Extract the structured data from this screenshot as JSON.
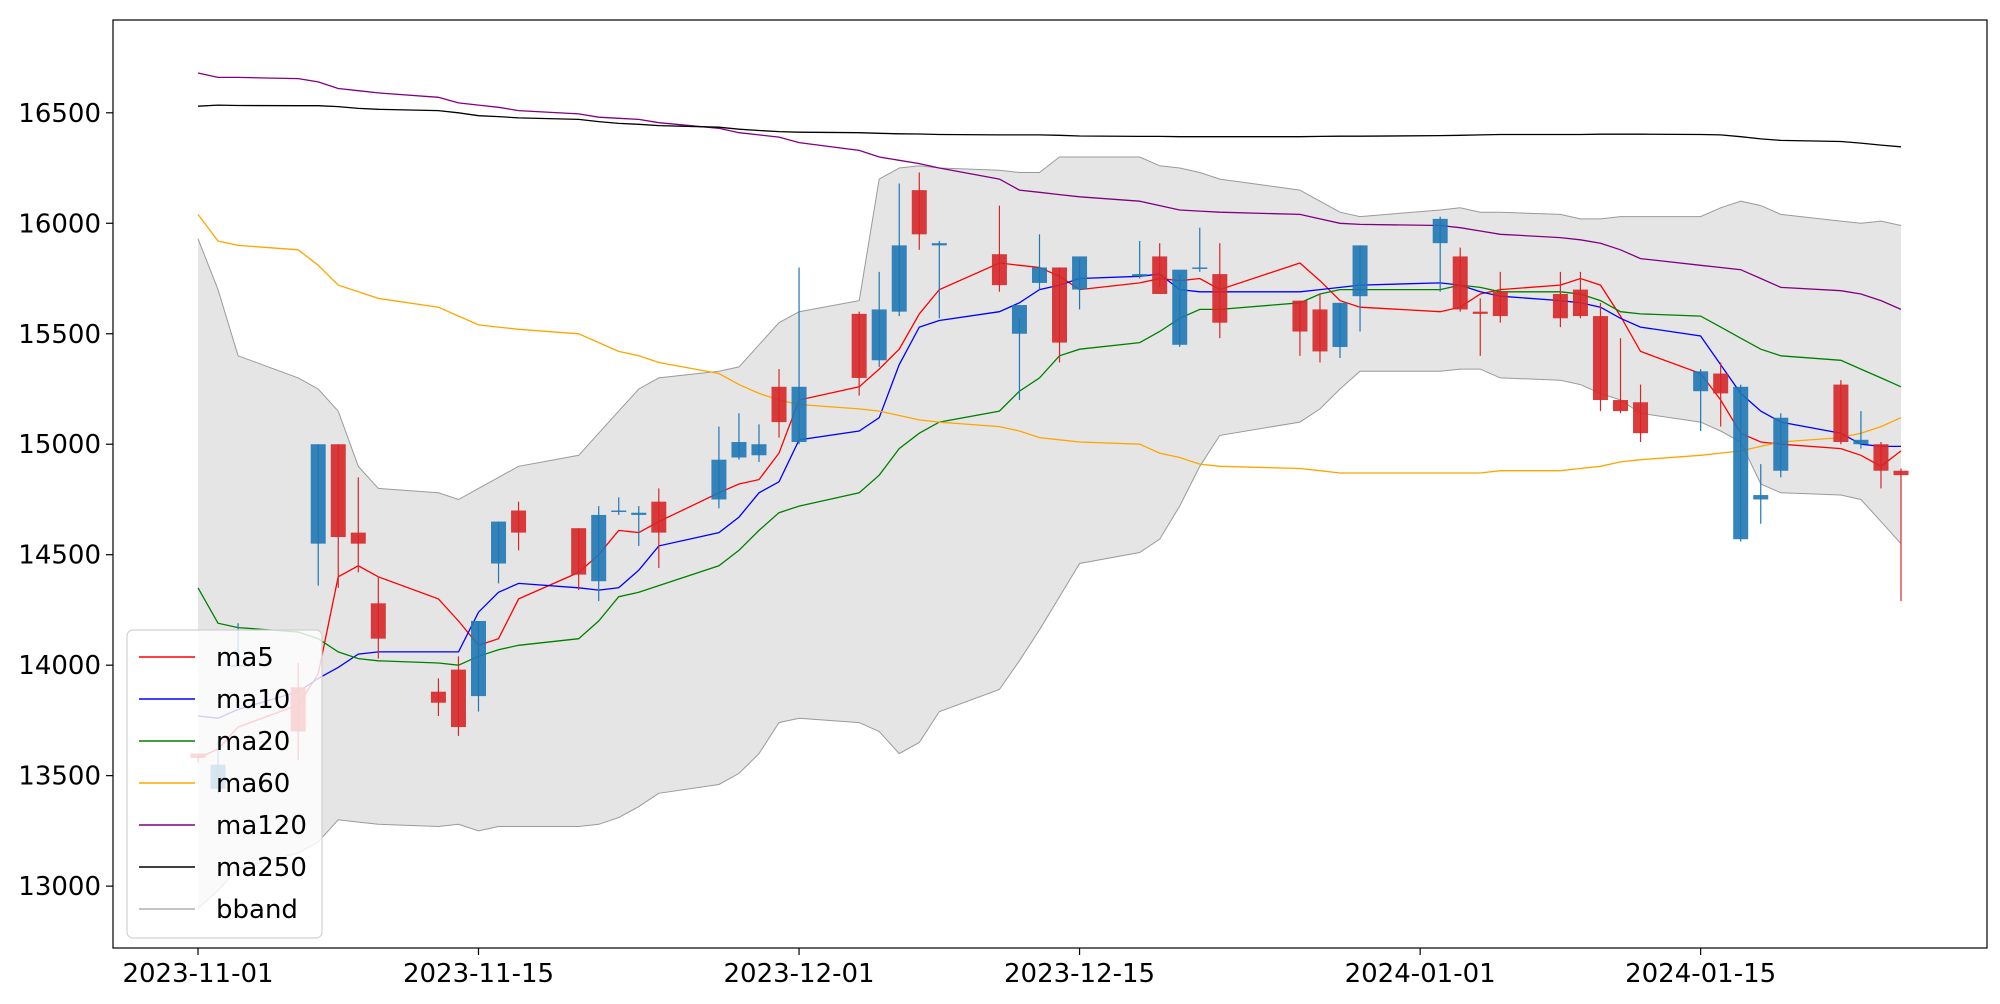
{
  "chart_data": {
    "type": "candlestick",
    "title": "",
    "xlabel": "",
    "ylabel": "",
    "dates": [
      "2023-11-01",
      "2023-11-02",
      "2023-11-03",
      "2023-11-06",
      "2023-11-07",
      "2023-11-08",
      "2023-11-09",
      "2023-11-10",
      "2023-11-13",
      "2023-11-14",
      "2023-11-15",
      "2023-11-16",
      "2023-11-17",
      "2023-11-20",
      "2023-11-21",
      "2023-11-22",
      "2023-11-23",
      "2023-11-24",
      "2023-11-27",
      "2023-11-28",
      "2023-11-29",
      "2023-11-30",
      "2023-12-01",
      "2023-12-04",
      "2023-12-05",
      "2023-12-06",
      "2023-12-07",
      "2023-12-08",
      "2023-12-11",
      "2023-12-12",
      "2023-12-13",
      "2023-12-14",
      "2023-12-15",
      "2023-12-18",
      "2023-12-19",
      "2023-12-20",
      "2023-12-21",
      "2023-12-22",
      "2023-12-26",
      "2023-12-27",
      "2023-12-28",
      "2023-12-29",
      "2024-01-02",
      "2024-01-03",
      "2024-01-04",
      "2024-01-05",
      "2024-01-08",
      "2024-01-09",
      "2024-01-10",
      "2024-01-11",
      "2024-01-12",
      "2024-01-15",
      "2024-01-16",
      "2024-01-17",
      "2024-01-18",
      "2024-01-19",
      "2024-01-22",
      "2024-01-23",
      "2024-01-24",
      "2024-01-25"
    ],
    "x_ticks": [
      "2023-11-01",
      "2023-11-15",
      "2023-12-01",
      "2023-12-15",
      "2024-01-01",
      "2024-01-15"
    ],
    "y_ticks": [
      13000,
      13500,
      14000,
      14500,
      15000,
      15500,
      16000,
      16500
    ],
    "ylim": [
      12720,
      16920
    ],
    "grid": false,
    "legend_position": "lower-left",
    "candles": {
      "open": [
        13600,
        13440,
        14000,
        13900,
        14550,
        15000,
        14600,
        14280,
        13880,
        13980,
        13860,
        14460,
        14700,
        14620,
        14380,
        14700,
        14680,
        14740,
        14750,
        14940,
        14950,
        15260,
        15010,
        15590,
        15380,
        15600,
        16150,
        15900,
        15860,
        15500,
        15730,
        15800,
        15700,
        15760,
        15850,
        15450,
        15800,
        15770,
        15650,
        15610,
        15440,
        15670,
        15910,
        15850,
        15600,
        15690,
        15680,
        15700,
        15580,
        15200,
        15190,
        15240,
        15320,
        14570,
        14750,
        14880,
        15270,
        15000,
        15000,
        14880
      ],
      "close": [
        13580,
        13550,
        14000,
        13700,
        15000,
        14580,
        14550,
        14120,
        13830,
        13720,
        14200,
        14650,
        14600,
        14410,
        14680,
        14700,
        14690,
        14600,
        14930,
        15010,
        15000,
        15100,
        15260,
        15300,
        15610,
        15900,
        15950,
        15910,
        15720,
        15630,
        15800,
        15460,
        15850,
        15770,
        15680,
        15790,
        15800,
        15550,
        15510,
        15420,
        15640,
        15900,
        16020,
        15610,
        15590,
        15580,
        15570,
        15580,
        15200,
        15150,
        15050,
        15330,
        15230,
        15260,
        14770,
        15120,
        15010,
        15020,
        14880,
        14860
      ],
      "high": [
        13600,
        13660,
        14190,
        14010,
        15000,
        15000,
        14850,
        14400,
        13940,
        14040,
        14200,
        14650,
        14740,
        14620,
        14720,
        14760,
        14720,
        14800,
        15080,
        15140,
        15090,
        15340,
        15800,
        15600,
        15780,
        16180,
        16230,
        15920,
        16080,
        15570,
        15950,
        15800,
        15840,
        15920,
        15910,
        15770,
        15980,
        15910,
        15650,
        15680,
        15640,
        15900,
        16030,
        15890,
        15660,
        15780,
        15780,
        15780,
        15640,
        15480,
        15270,
        15340,
        15370,
        15270,
        14910,
        15140,
        15290,
        15150,
        15010,
        14890
      ],
      "low": [
        13560,
        13420,
        14000,
        13570,
        14360,
        14350,
        14420,
        14030,
        13770,
        13680,
        13790,
        14370,
        14520,
        14340,
        14290,
        14680,
        14540,
        14440,
        14710,
        14930,
        14920,
        15030,
        15000,
        15220,
        15350,
        15580,
        15880,
        15570,
        15690,
        15200,
        15700,
        15370,
        15610,
        15750,
        15710,
        15440,
        15780,
        15480,
        15400,
        15370,
        15390,
        15510,
        15690,
        15600,
        15400,
        15550,
        15530,
        15570,
        15150,
        15140,
        15010,
        15060,
        15080,
        14560,
        14640,
        14850,
        15000,
        14980,
        14800,
        14290
      ]
    },
    "series": [
      {
        "name": "ma5",
        "color": "#ff0000",
        "values": [
          13580,
          13620,
          13720,
          13820,
          13960,
          14400,
          14450,
          14400,
          14300,
          14200,
          14090,
          14120,
          14300,
          14420,
          14500,
          14610,
          14600,
          14650,
          14780,
          14820,
          14840,
          14960,
          15200,
          15260,
          15340,
          15430,
          15590,
          15700,
          15820,
          15810,
          15800,
          15760,
          15700,
          15730,
          15750,
          15740,
          15750,
          15700,
          15820,
          15740,
          15650,
          15620,
          15600,
          15620,
          15680,
          15700,
          15720,
          15750,
          15720,
          15580,
          15420,
          15320,
          15200,
          15050,
          15010,
          15000,
          14980,
          14950,
          14900,
          14970
        ]
      },
      {
        "name": "ma10",
        "color": "#0000ff",
        "values": [
          13770,
          13760,
          13800,
          13880,
          13940,
          13990,
          14050,
          14060,
          14060,
          14060,
          14240,
          14330,
          14370,
          14350,
          14340,
          14350,
          14430,
          14540,
          14600,
          14670,
          14780,
          14830,
          15020,
          15060,
          15120,
          15360,
          15530,
          15560,
          15600,
          15640,
          15700,
          15720,
          15750,
          15760,
          15770,
          15700,
          15690,
          15690,
          15690,
          15700,
          15710,
          15720,
          15730,
          15720,
          15690,
          15670,
          15650,
          15640,
          15620,
          15570,
          15530,
          15490,
          15360,
          15230,
          15150,
          15100,
          15050,
          15000,
          14990,
          14990
        ]
      },
      {
        "name": "ma20",
        "color": "#008000",
        "values": [
          14350,
          14190,
          14170,
          14150,
          14120,
          14060,
          14030,
          14020,
          14010,
          14000,
          14040,
          14070,
          14090,
          14120,
          14200,
          14310,
          14330,
          14360,
          14450,
          14520,
          14610,
          14690,
          14720,
          14780,
          14860,
          14980,
          15050,
          15100,
          15150,
          15240,
          15300,
          15400,
          15430,
          15460,
          15510,
          15570,
          15610,
          15610,
          15640,
          15680,
          15700,
          15700,
          15700,
          15720,
          15710,
          15690,
          15690,
          15680,
          15650,
          15600,
          15590,
          15580,
          15530,
          15480,
          15430,
          15400,
          15380,
          15340,
          15300,
          15260
        ]
      },
      {
        "name": "ma60",
        "color": "#ffa500",
        "values": [
          16040,
          15920,
          15900,
          15880,
          15810,
          15720,
          15690,
          15660,
          15620,
          15580,
          15540,
          15530,
          15520,
          15500,
          15460,
          15420,
          15400,
          15370,
          15320,
          15270,
          15230,
          15200,
          15180,
          15160,
          15150,
          15130,
          15110,
          15100,
          15080,
          15060,
          15030,
          15020,
          15010,
          15000,
          14960,
          14940,
          14910,
          14900,
          14890,
          14880,
          14870,
          14870,
          14870,
          14870,
          14870,
          14880,
          14880,
          14890,
          14900,
          14920,
          14930,
          14950,
          14960,
          14970,
          14990,
          15010,
          15030,
          15050,
          15080,
          15120
        ]
      },
      {
        "name": "ma120",
        "color": "#800080",
        "values": [
          16680,
          16660,
          16660,
          16655,
          16640,
          16610,
          16600,
          16590,
          16570,
          16545,
          16535,
          16525,
          16510,
          16495,
          16480,
          16475,
          16470,
          16455,
          16430,
          16410,
          16400,
          16390,
          16365,
          16330,
          16300,
          16285,
          16270,
          16250,
          16200,
          16150,
          16140,
          16130,
          16120,
          16100,
          16080,
          16060,
          16055,
          16050,
          16040,
          16020,
          16000,
          15995,
          15990,
          15980,
          15965,
          15950,
          15935,
          15925,
          15910,
          15880,
          15840,
          15810,
          15800,
          15790,
          15750,
          15710,
          15695,
          15680,
          15650,
          15610
        ]
      },
      {
        "name": "ma250",
        "color": "#000000",
        "values": [
          16530,
          16535,
          16533,
          16532,
          16532,
          16528,
          16520,
          16516,
          16510,
          16500,
          16487,
          16483,
          16477,
          16470,
          16460,
          16452,
          16448,
          16442,
          16435,
          16426,
          16420,
          16415,
          16412,
          16410,
          16407,
          16405,
          16404,
          16402,
          16400,
          16400,
          16400,
          16398,
          16395,
          16393,
          16393,
          16392,
          16392,
          16392,
          16392,
          16393,
          16394,
          16394,
          16397,
          16398,
          16400,
          16402,
          16402,
          16402,
          16403,
          16403,
          16403,
          16402,
          16400,
          16392,
          16382,
          16375,
          16370,
          16363,
          16354,
          16346
        ]
      }
    ],
    "bband": {
      "name": "bband",
      "upper": [
        15930,
        15700,
        15400,
        15300,
        15250,
        15150,
        14900,
        14800,
        14780,
        14750,
        14800,
        14850,
        14900,
        14950,
        15050,
        15150,
        15250,
        15300,
        15330,
        15350,
        15450,
        15550,
        15600,
        15650,
        16200,
        16250,
        16260,
        16250,
        16240,
        16230,
        16230,
        16300,
        16300,
        16300,
        16260,
        16250,
        16230,
        16200,
        16150,
        16100,
        16050,
        16030,
        16060,
        16070,
        16050,
        16050,
        16040,
        16020,
        16020,
        16030,
        16030,
        16030,
        16070,
        16100,
        16080,
        16040,
        16010,
        16000,
        16010,
        15990
      ],
      "lower": [
        12900,
        12980,
        13080,
        13150,
        13200,
        13300,
        13290,
        13280,
        13270,
        13280,
        13250,
        13270,
        13270,
        13270,
        13280,
        13310,
        13360,
        13420,
        13460,
        13510,
        13600,
        13740,
        13760,
        13740,
        13700,
        13600,
        13650,
        13790,
        13890,
        14020,
        14160,
        14310,
        14460,
        14510,
        14570,
        14720,
        14900,
        15040,
        15100,
        15160,
        15250,
        15330,
        15330,
        15340,
        15340,
        15300,
        15290,
        15270,
        15230,
        15200,
        15140,
        15100,
        15060,
        15010,
        14820,
        14780,
        14770,
        14750,
        14650,
        14550
      ]
    }
  }
}
